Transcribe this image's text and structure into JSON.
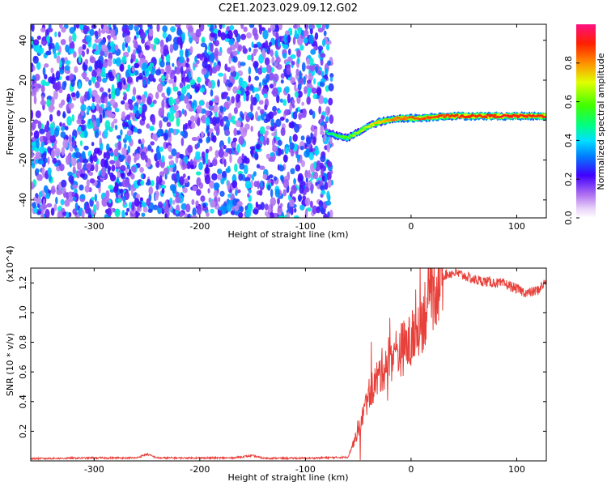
{
  "title": "C2E1.2023.029.09.12.G02",
  "chart_data": [
    {
      "type": "heatmap",
      "xlabel": "Height of straight line (km)",
      "ylabel": "Frequency (Hz)",
      "xlim": [
        -360,
        128
      ],
      "ylim": [
        -49,
        48
      ],
      "xticks": [
        -300,
        -200,
        -100,
        0,
        100
      ],
      "yticks": [
        -40,
        -20,
        0,
        20,
        40
      ],
      "colorbar": {
        "label": "Normalized spectral amplitude",
        "range": [
          0.0,
          1.0
        ],
        "ticks": [
          0.0,
          0.2,
          0.4,
          0.6,
          0.8
        ]
      },
      "noise_region": {
        "x_range": [
          -360,
          -75
        ],
        "freq_range": [
          -49,
          48
        ],
        "amplitude_range": [
          0.1,
          0.4
        ]
      },
      "signal_track": {
        "x": [
          -80,
          -70,
          -60,
          -50,
          -40,
          -30,
          -20,
          -10,
          0,
          10,
          30,
          50,
          70,
          90,
          110,
          128
        ],
        "freq": [
          -6,
          -8,
          -9,
          -6,
          -3,
          -1,
          0,
          1,
          1,
          1,
          2,
          2,
          2,
          2,
          2,
          2
        ],
        "amplitude": [
          0.45,
          0.55,
          0.6,
          0.65,
          0.7,
          0.75,
          0.8,
          0.82,
          0.85,
          0.85,
          0.88,
          0.9,
          0.9,
          0.92,
          0.9,
          0.9
        ]
      }
    },
    {
      "type": "line",
      "xlabel": "Height of straight line (km)",
      "ylabel": "SNR (10 * v/v)",
      "yscale_label": "(x10^4)",
      "xlim": [
        -360,
        128
      ],
      "ylim": [
        0,
        1.3
      ],
      "xticks": [
        -300,
        -200,
        -100,
        0,
        100
      ],
      "yticks": [
        0.2,
        0.4,
        0.6,
        0.8,
        1.0,
        1.2
      ],
      "series": [
        {
          "color": "#e8403a",
          "x": [
            -360,
            -300,
            -260,
            -250,
            -240,
            -170,
            -150,
            -140,
            -100,
            -60,
            -50,
            -40,
            -30,
            -20,
            -10,
            0,
            10,
            20,
            30,
            40,
            50,
            60,
            70,
            80,
            90,
            100,
            110,
            120,
            128
          ],
          "y": [
            0.015,
            0.02,
            0.02,
            0.045,
            0.02,
            0.02,
            0.035,
            0.018,
            0.018,
            0.025,
            0.2,
            0.45,
            0.58,
            0.7,
            0.75,
            0.8,
            0.95,
            1.15,
            1.25,
            1.27,
            1.25,
            1.22,
            1.21,
            1.2,
            1.19,
            1.16,
            1.13,
            1.15,
            1.21
          ]
        }
      ]
    }
  ]
}
